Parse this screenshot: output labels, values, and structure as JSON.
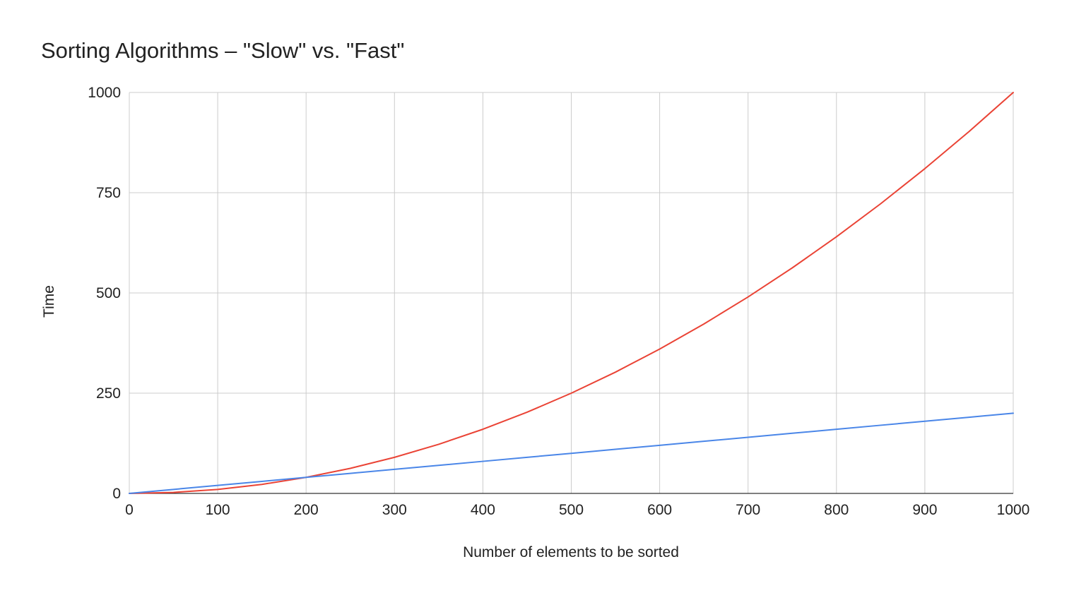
{
  "chart_data": {
    "type": "line",
    "title": "Sorting Algorithms – \"Slow\" vs. \"Fast\"",
    "xlabel": "Number of elements to be sorted",
    "ylabel": "Time",
    "xlim": [
      0,
      1000
    ],
    "ylim": [
      0,
      1000
    ],
    "x_ticks": [
      0,
      100,
      200,
      300,
      400,
      500,
      600,
      700,
      800,
      900,
      1000
    ],
    "y_ticks": [
      0,
      250,
      500,
      750,
      1000
    ],
    "grid": true,
    "legend": "none",
    "x": [
      0,
      50,
      100,
      150,
      200,
      250,
      300,
      350,
      400,
      450,
      500,
      550,
      600,
      650,
      700,
      750,
      800,
      850,
      900,
      950,
      1000
    ],
    "series": [
      {
        "color": "#ea4335",
        "values": [
          0,
          2.5,
          10,
          22.5,
          40,
          62.5,
          90,
          122.5,
          160,
          202.5,
          250,
          302.5,
          360,
          422.5,
          490,
          562.5,
          640,
          722.5,
          810,
          902.5,
          1000
        ]
      },
      {
        "color": "#4a86e8",
        "values": [
          0,
          10,
          20,
          30,
          40,
          50,
          60,
          70,
          80,
          90,
          100,
          110,
          120,
          130,
          140,
          150,
          160,
          170,
          180,
          190,
          200
        ]
      }
    ]
  },
  "colors": {
    "grid": "#cccccc",
    "axis": "#333333",
    "text": "#222222"
  }
}
